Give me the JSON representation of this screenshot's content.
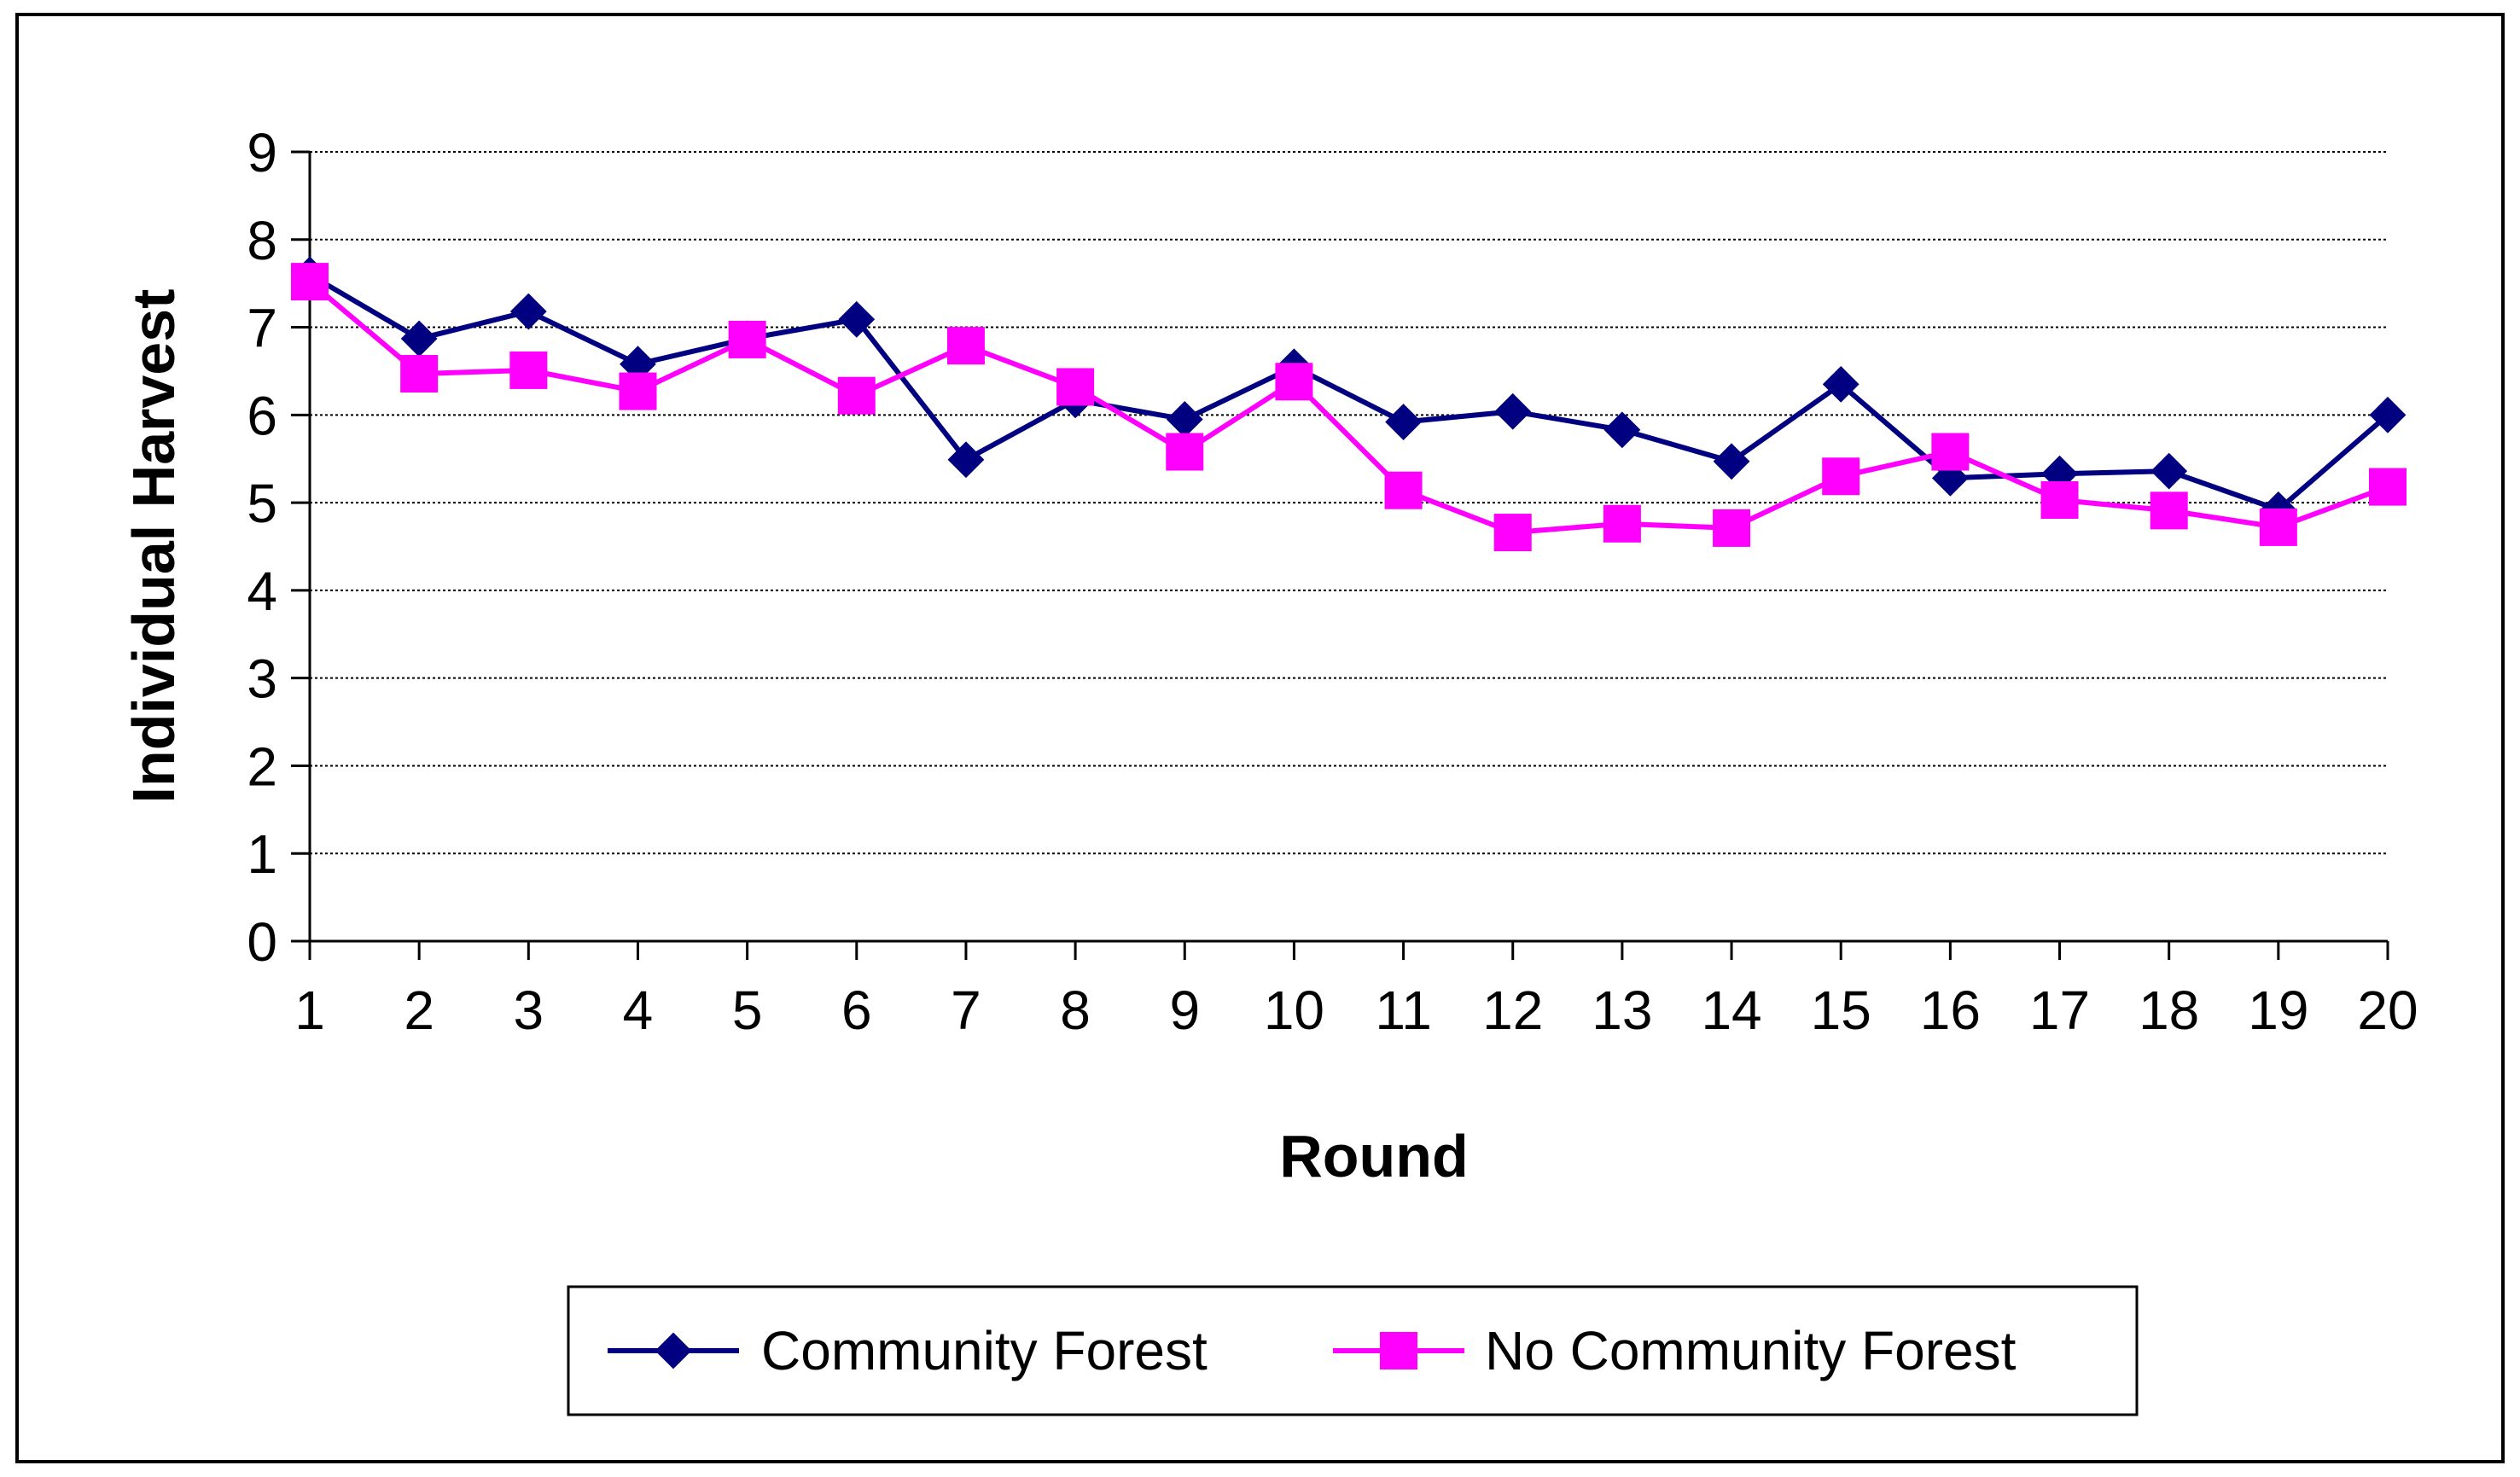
{
  "chart_data": {
    "type": "line",
    "title": "",
    "xlabel": "Round",
    "ylabel": "Individual Harvest",
    "x": [
      1,
      2,
      3,
      4,
      5,
      6,
      7,
      8,
      9,
      10,
      11,
      12,
      13,
      14,
      15,
      16,
      17,
      18,
      19,
      20
    ],
    "xlim": [
      1,
      20
    ],
    "ylim": [
      0,
      9
    ],
    "yticks": [
      0,
      1,
      2,
      3,
      4,
      5,
      6,
      7,
      8,
      9
    ],
    "grid": true,
    "legend_position": "bottom",
    "series": [
      {
        "name": "Community Forest",
        "marker": "diamond",
        "color": "#000080",
        "values": [
          7.6,
          6.87,
          7.18,
          6.58,
          6.87,
          7.09,
          5.49,
          6.17,
          5.95,
          6.55,
          5.92,
          6.04,
          5.83,
          5.47,
          6.35,
          5.28,
          5.33,
          5.36,
          4.92,
          6.0
        ]
      },
      {
        "name": "No Community Forest",
        "marker": "square",
        "color": "#ff00ff",
        "values": [
          7.52,
          6.47,
          6.51,
          6.27,
          6.86,
          6.22,
          6.79,
          6.32,
          5.58,
          6.38,
          5.14,
          4.66,
          4.76,
          4.71,
          5.3,
          5.58,
          5.03,
          4.91,
          4.72,
          5.18
        ]
      }
    ]
  }
}
